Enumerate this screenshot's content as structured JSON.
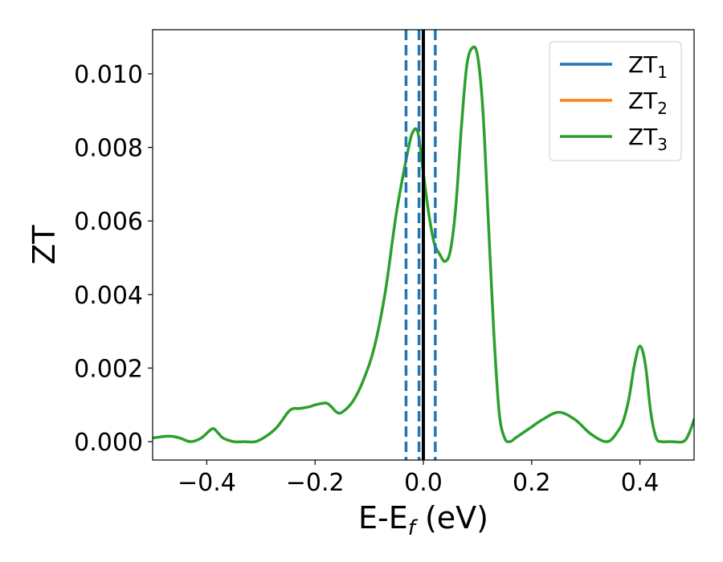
{
  "chart_data": {
    "type": "line",
    "xlabel_main": "E-E",
    "xlabel_sub": "f",
    "xlabel_unit": " (eV)",
    "ylabel": "ZT",
    "xlim": [
      -0.5,
      0.5
    ],
    "ylim": [
      -0.0005,
      0.0112
    ],
    "x_ticks": [
      -0.4,
      -0.2,
      0.0,
      0.2,
      0.4
    ],
    "x_tick_labels": [
      "−0.4",
      "−0.2",
      "0.0",
      "0.2",
      "0.4"
    ],
    "y_ticks": [
      0.0,
      0.002,
      0.004,
      0.006,
      0.008,
      0.01
    ],
    "y_tick_labels": [
      "0.000",
      "0.002",
      "0.004",
      "0.006",
      "0.008",
      "0.010"
    ],
    "legend_position": "top-right",
    "legend": [
      {
        "label": "ZT",
        "sub": "1",
        "color": "#1f77b4"
      },
      {
        "label": "ZT",
        "sub": "2",
        "color": "#ff7f0e"
      },
      {
        "label": "ZT",
        "sub": "3",
        "color": "#2ca02c"
      }
    ],
    "vertical_lines": [
      {
        "x": -0.032,
        "style": "dashed",
        "color": "#1f77b4"
      },
      {
        "x": -0.008,
        "style": "dashed",
        "color": "#1f77b4"
      },
      {
        "x": 0.022,
        "style": "dashed",
        "color": "#1f77b4"
      },
      {
        "x": 0.0,
        "style": "solid",
        "color": "#000000"
      }
    ],
    "series": [
      {
        "color": "#2ca02c",
        "x": [
          -0.5,
          -0.47,
          -0.45,
          -0.43,
          -0.41,
          -0.39,
          -0.38,
          -0.37,
          -0.35,
          -0.33,
          -0.31,
          -0.29,
          -0.27,
          -0.25,
          -0.24,
          -0.23,
          -0.21,
          -0.2,
          -0.18,
          -0.17,
          -0.16,
          -0.15,
          -0.13,
          -0.11,
          -0.09,
          -0.07,
          -0.05,
          -0.03,
          -0.02,
          -0.01,
          0.0,
          0.01,
          0.02,
          0.03,
          0.04,
          0.05,
          0.06,
          0.07,
          0.08,
          0.09,
          0.1,
          0.11,
          0.12,
          0.13,
          0.14,
          0.15,
          0.16,
          0.17,
          0.18,
          0.2,
          0.22,
          0.25,
          0.28,
          0.31,
          0.34,
          0.36,
          0.37,
          0.38,
          0.39,
          0.4,
          0.41,
          0.42,
          0.43,
          0.44,
          0.45,
          0.46,
          0.48,
          0.49,
          0.5
        ],
        "values": [
          0.0001,
          0.00015,
          0.0001,
          0.0,
          0.0001,
          0.00035,
          0.00025,
          0.0001,
          0.0,
          0.0,
          0.0,
          0.00015,
          0.0004,
          0.0008,
          0.0009,
          0.0009,
          0.00095,
          0.001,
          0.00105,
          0.00095,
          0.0008,
          0.0008,
          0.0011,
          0.0017,
          0.0026,
          0.0041,
          0.0062,
          0.0078,
          0.0084,
          0.0084,
          0.0073,
          0.0062,
          0.0054,
          0.0051,
          0.0049,
          0.0052,
          0.0064,
          0.0085,
          0.0102,
          0.0107,
          0.0105,
          0.009,
          0.006,
          0.003,
          0.0008,
          0.0001,
          0.0,
          0.0001,
          0.0002,
          0.0004,
          0.0006,
          0.0008,
          0.0006,
          0.0002,
          0.0,
          0.0003,
          0.0006,
          0.0012,
          0.0021,
          0.0026,
          0.0021,
          0.0008,
          0.0001,
          0.0,
          0.0,
          0.0,
          0.0,
          0.0002,
          0.0006
        ]
      }
    ]
  }
}
